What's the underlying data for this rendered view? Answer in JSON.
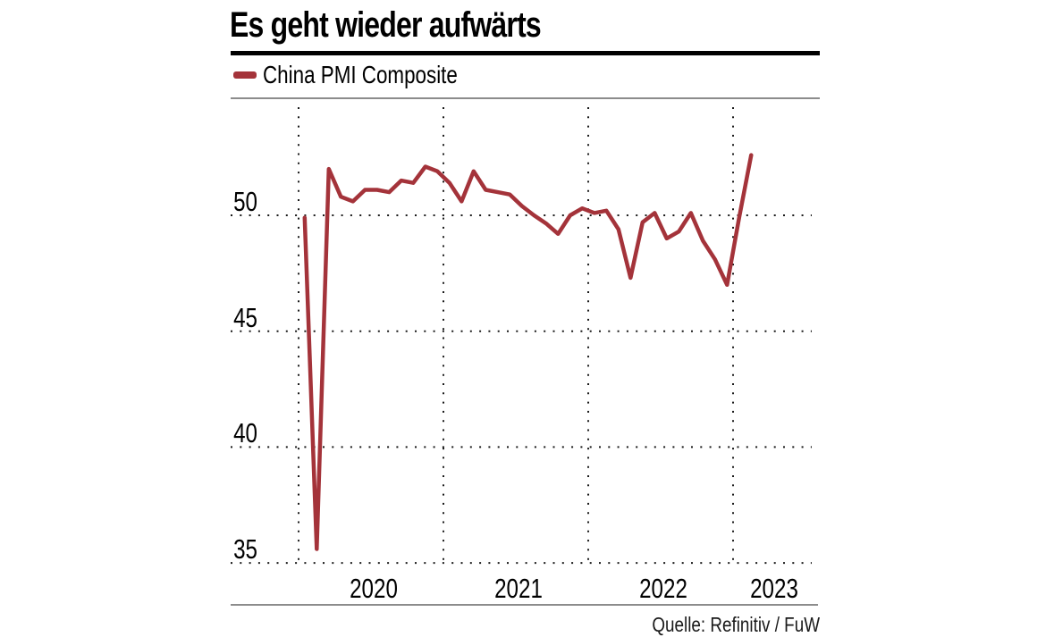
{
  "title": "Es geht wieder aufwärts",
  "legend": {
    "label": "China PMI Composite",
    "swatch_color": "#a4333a"
  },
  "source": "Quelle: Refinitiv / FuW",
  "colors": {
    "line": "#a4333a",
    "grid_dots": "#1a1a1a",
    "heavy_rule": "#000000",
    "light_rule": "#8c8c8c",
    "text": "#000000",
    "background": "#ffffff"
  },
  "y_axis": {
    "ticks": [
      "50",
      "45",
      "40",
      "35"
    ]
  },
  "x_axis": {
    "ticks": [
      "2020",
      "2021",
      "2022",
      "2023"
    ]
  },
  "chart_data": {
    "type": "line",
    "title": "Es geht wieder aufwärts",
    "xlabel": "",
    "ylabel": "",
    "ylim": [
      35,
      54.7
    ],
    "grid": "dotted",
    "legend_position": "top-left",
    "x_gridlines_years": [
      "2020",
      "2021",
      "2022",
      "2023"
    ],
    "y_gridlines": [
      50,
      45,
      40,
      35
    ],
    "series": [
      {
        "name": "China PMI Composite",
        "color": "#a4333a",
        "x": [
          "2020-01",
          "2020-02",
          "2020-03",
          "2020-04",
          "2020-05",
          "2020-06",
          "2020-07",
          "2020-08",
          "2020-09",
          "2020-10",
          "2020-11",
          "2020-12",
          "2021-01",
          "2021-02",
          "2021-03",
          "2021-04",
          "2021-05",
          "2021-06",
          "2021-07",
          "2021-08",
          "2021-09",
          "2021-10",
          "2021-11",
          "2021-12",
          "2022-01",
          "2022-02",
          "2022-03",
          "2022-04",
          "2022-05",
          "2022-06",
          "2022-07",
          "2022-08",
          "2022-09",
          "2022-10",
          "2022-11",
          "2022-12",
          "2023-01",
          "2023-02"
        ],
        "values": [
          49.9,
          35.6,
          52.0,
          50.8,
          50.6,
          51.1,
          51.1,
          51.0,
          51.5,
          51.4,
          52.1,
          51.9,
          51.4,
          50.6,
          51.9,
          51.1,
          51.0,
          50.9,
          50.4,
          50.0,
          49.65,
          49.2,
          50.0,
          50.3,
          50.1,
          50.2,
          49.4,
          47.3,
          49.7,
          50.1,
          49.0,
          49.3,
          50.1,
          48.9,
          48.1,
          47.0,
          49.9,
          52.6
        ]
      }
    ]
  }
}
